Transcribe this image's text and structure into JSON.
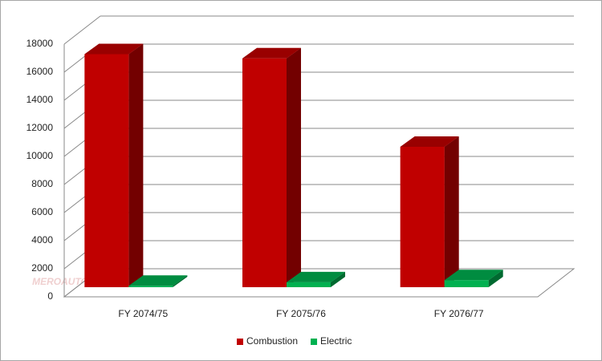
{
  "chart_data": {
    "type": "bar3d",
    "categories": [
      "FY 2074/75",
      "FY 2075/76",
      "FY 2076/77"
    ],
    "series": [
      {
        "name": "Combustion",
        "color": "#c00000",
        "values": [
          16600,
          16300,
          10000
        ]
      },
      {
        "name": "Electric",
        "color": "#00b050",
        "values": [
          100,
          350,
          500
        ]
      }
    ],
    "ylim": [
      0,
      18000
    ],
    "yticks": [
      0,
      2000,
      4000,
      6000,
      8000,
      10000,
      12000,
      14000,
      16000,
      18000
    ],
    "grid": true,
    "legend": "bottom",
    "watermark": "MEROAUTO"
  }
}
